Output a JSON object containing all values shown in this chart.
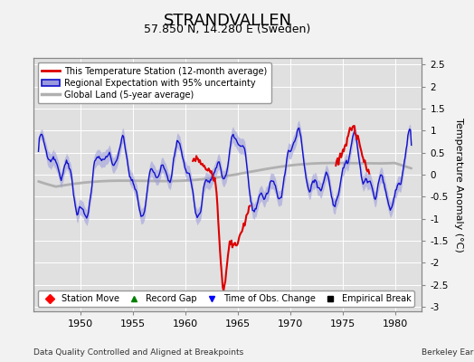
{
  "title": "STRANDVALLEN",
  "subtitle": "57.850 N, 14.280 E (Sweden)",
  "ylabel": "Temperature Anomaly (°C)",
  "xlim": [
    1945.5,
    1982.5
  ],
  "ylim": [
    -3.1,
    2.65
  ],
  "yticks": [
    -3,
    -2.5,
    -2,
    -1.5,
    -1,
    -0.5,
    0,
    0.5,
    1,
    1.5,
    2,
    2.5
  ],
  "xticks": [
    1950,
    1955,
    1960,
    1965,
    1970,
    1975,
    1980
  ],
  "bg_color": "#e0e0e0",
  "grid_color": "#ffffff",
  "station_color": "#dd0000",
  "regional_color": "#1111cc",
  "regional_fill": "#9999dd",
  "global_color": "#b0b0b0",
  "footer_left": "Data Quality Controlled and Aligned at Breakpoints",
  "footer_right": "Berkeley Earth",
  "legend1": [
    "This Temperature Station (12-month average)",
    "Regional Expectation with 95% uncertainty",
    "Global Land (5-year average)"
  ],
  "legend2_labels": [
    "Station Move",
    "Record Gap",
    "Time of Obs. Change",
    "Empirical Break"
  ],
  "legend2_colors": [
    "red",
    "green",
    "blue",
    "black"
  ],
  "legend2_markers": [
    "D",
    "^",
    "v",
    "s"
  ]
}
